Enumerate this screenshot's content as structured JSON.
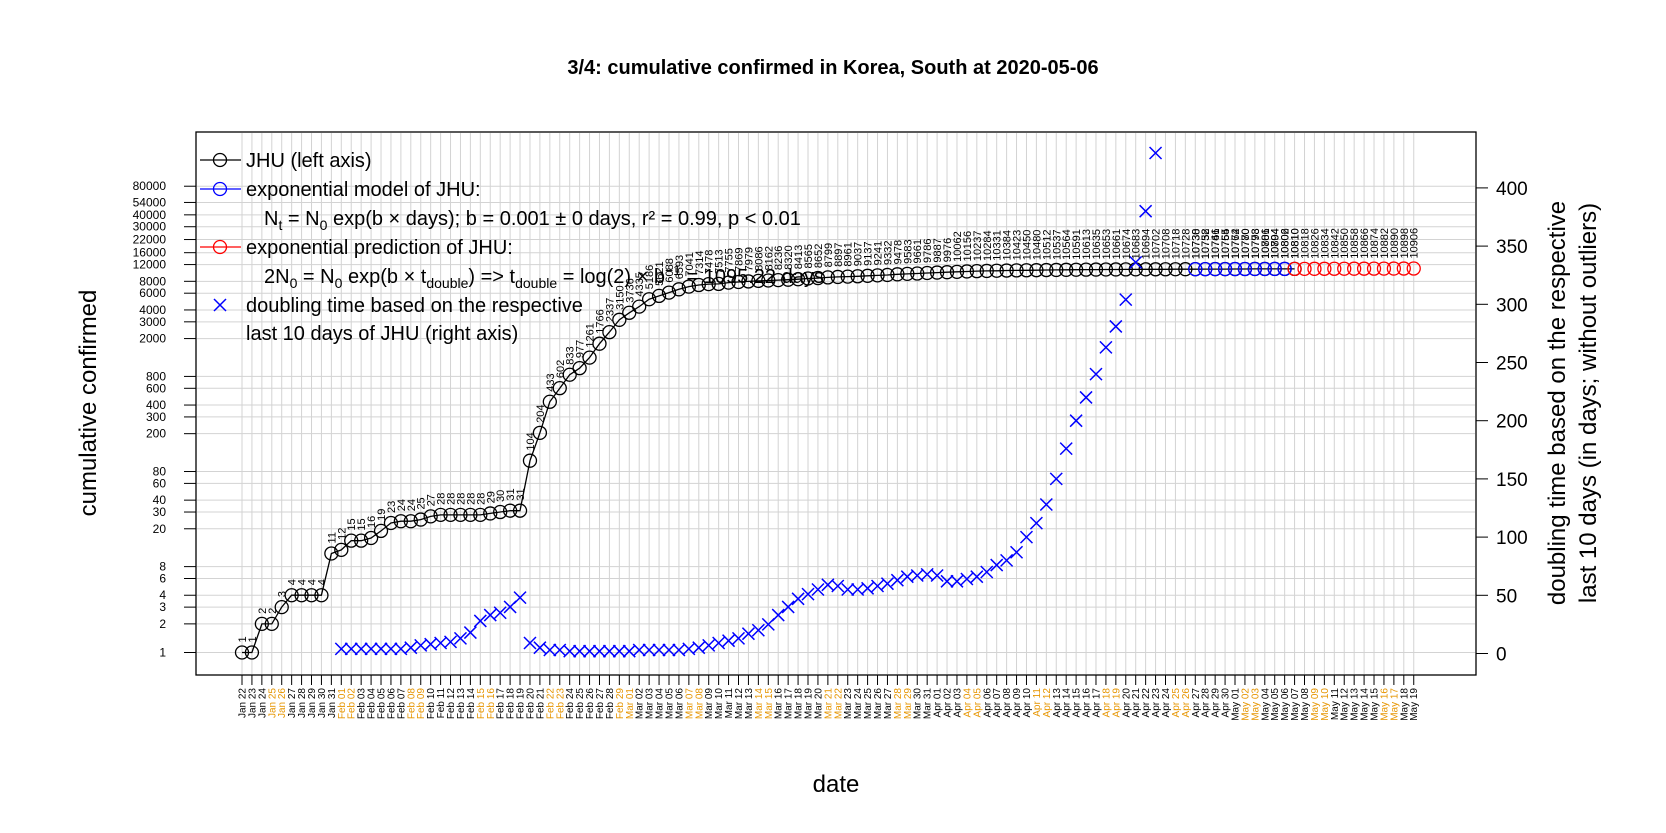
{
  "chart_data": {
    "type": "line",
    "title": "3/4: cumulative confirmed in Korea, South at 2020-05-06",
    "xlabel": "date",
    "ylabel_left": "cumulative confirmed",
    "ylabel_right": [
      "doubling time based on the respective",
      "last 10 days (in days; without outliers)"
    ],
    "y_left_scale": "log",
    "y_left_ticks": [
      1,
      2,
      3,
      4,
      6,
      8,
      20,
      30,
      40,
      60,
      80,
      200,
      300,
      400,
      600,
      800,
      2000,
      3000,
      4000,
      6000,
      8000,
      12000,
      16000,
      22000,
      30000,
      40000,
      54000,
      80000
    ],
    "y_right_ticks": [
      0,
      50,
      100,
      150,
      200,
      250,
      300,
      350,
      400
    ],
    "y_right_range": [
      0,
      430
    ],
    "x_start": "2020-01-22",
    "x_end": "2020-05-19",
    "grid": true,
    "legend_position": "top-left",
    "legend": {
      "jhu": "JHU (left axis)",
      "model": "exponential model of JHU:",
      "model_eq": {
        "a": "N",
        "a_sub": "t",
        "b": " = N",
        "b_sub": "0",
        "c": " exp(b × days); b = 0.001 ± 0 days, r² = 0.99, p < 0.01"
      },
      "pred": "exponential prediction of JHU:",
      "pred_eq": {
        "a": "2N",
        "a_sub": "0",
        "b": " = N",
        "b_sub": "0",
        "c": " exp(b × t",
        "c_sub": "double",
        "d": ") => t",
        "d_sub": "double",
        "e": " = log(2) × b",
        "e_sup": "−1",
        "f": " = 1095.22 days"
      },
      "doubling_line1": "doubling time based on the respective",
      "doubling_line2": "last 10 days of JHU (right axis)"
    },
    "series": [
      {
        "name": "JHU (left axis)",
        "color": "#000000",
        "marker": "circle",
        "start_date": "2020-01-22",
        "values": [
          1,
          1,
          2,
          2,
          3,
          4,
          4,
          4,
          4,
          11,
          12,
          15,
          15,
          16,
          19,
          23,
          24,
          24,
          25,
          27,
          28,
          28,
          28,
          28,
          28,
          29,
          30,
          31,
          31,
          104,
          204,
          433,
          602,
          833,
          977,
          1261,
          1766,
          2337,
          3150,
          3736,
          4335,
          5186,
          5621,
          6088,
          6593,
          7041,
          7314,
          7478,
          7513,
          7755,
          7869,
          7979,
          8086,
          8162,
          8236,
          8320,
          8413,
          8565,
          8652,
          8799,
          8897,
          8961,
          9037,
          9137,
          9241,
          9332,
          9478,
          9583,
          9661,
          9786,
          9887,
          9976,
          10062,
          10156,
          10237,
          10284,
          10331,
          10384,
          10423,
          10450,
          10480,
          10512,
          10537,
          10564,
          10591,
          10613,
          10635,
          10653,
          10661,
          10674,
          10683,
          10694,
          10702,
          10708,
          10718,
          10728,
          10738,
          10752,
          10761,
          10765,
          10774,
          10780,
          10793,
          10801,
          10804,
          10806,
          10810
        ]
      },
      {
        "name": "exponential model of JHU",
        "color": "#0000ff",
        "marker": "circle",
        "start_date": "2020-04-27",
        "values": [
          10730,
          10738,
          10746,
          10754,
          10762,
          10770,
          10778,
          10786,
          10794,
          10802
        ]
      },
      {
        "name": "exponential prediction of JHU",
        "color": "#ff0000",
        "marker": "circle",
        "start_date": "2020-05-07",
        "values": [
          10810,
          10818,
          10826,
          10834,
          10842,
          10850,
          10858,
          10866,
          10874,
          10882,
          10890,
          10898,
          10906
        ]
      },
      {
        "name": "doubling time based on the respective last 10 days of JHU (right axis)",
        "color": "#0000ff",
        "marker": "x",
        "axis": "right",
        "points": [
          [
            "2020-02-01",
            4
          ],
          [
            "2020-02-02",
            4
          ],
          [
            "2020-02-03",
            4
          ],
          [
            "2020-02-04",
            4
          ],
          [
            "2020-02-05",
            4
          ],
          [
            "2020-02-06",
            4
          ],
          [
            "2020-02-07",
            4
          ],
          [
            "2020-02-08",
            5
          ],
          [
            "2020-02-09",
            7
          ],
          [
            "2020-02-10",
            8
          ],
          [
            "2020-02-11",
            9
          ],
          [
            "2020-02-12",
            10
          ],
          [
            "2020-02-13",
            13
          ],
          [
            "2020-02-14",
            18
          ],
          [
            "2020-02-15",
            28
          ],
          [
            "2020-02-16",
            33
          ],
          [
            "2020-02-17",
            35
          ],
          [
            "2020-02-18",
            40
          ],
          [
            "2020-02-19",
            48
          ],
          [
            "2020-02-20",
            9
          ],
          [
            "2020-02-21",
            5
          ],
          [
            "2020-02-22",
            3
          ],
          [
            "2020-02-23",
            3
          ],
          [
            "2020-02-24",
            2
          ],
          [
            "2020-02-25",
            2
          ],
          [
            "2020-02-26",
            2
          ],
          [
            "2020-02-27",
            2
          ],
          [
            "2020-02-28",
            2
          ],
          [
            "2020-02-29",
            2
          ],
          [
            "2020-03-01",
            2
          ],
          [
            "2020-03-02",
            3
          ],
          [
            "2020-03-03",
            3
          ],
          [
            "2020-03-04",
            3
          ],
          [
            "2020-03-05",
            3
          ],
          [
            "2020-03-06",
            3
          ],
          [
            "2020-03-07",
            4
          ],
          [
            "2020-03-08",
            5
          ],
          [
            "2020-03-09",
            7
          ],
          [
            "2020-03-10",
            9
          ],
          [
            "2020-03-11",
            11
          ],
          [
            "2020-03-12",
            13
          ],
          [
            "2020-03-13",
            17
          ],
          [
            "2020-03-14",
            20
          ],
          [
            "2020-03-15",
            25
          ],
          [
            "2020-03-16",
            33
          ],
          [
            "2020-03-17",
            40
          ],
          [
            "2020-03-18",
            47
          ],
          [
            "2020-03-19",
            51
          ],
          [
            "2020-03-20",
            55
          ],
          [
            "2020-03-21",
            59
          ],
          [
            "2020-03-22",
            58
          ],
          [
            "2020-03-23",
            55
          ],
          [
            "2020-03-24",
            55
          ],
          [
            "2020-03-25",
            56
          ],
          [
            "2020-03-26",
            58
          ],
          [
            "2020-03-27",
            60
          ],
          [
            "2020-03-28",
            63
          ],
          [
            "2020-03-29",
            66
          ],
          [
            "2020-03-30",
            67
          ],
          [
            "2020-03-31",
            68
          ],
          [
            "2020-04-01",
            67
          ],
          [
            "2020-04-02",
            62
          ],
          [
            "2020-04-03",
            62
          ],
          [
            "2020-04-04",
            64
          ],
          [
            "2020-04-05",
            66
          ],
          [
            "2020-04-06",
            70
          ],
          [
            "2020-04-07",
            76
          ],
          [
            "2020-04-08",
            80
          ],
          [
            "2020-04-09",
            87
          ],
          [
            "2020-04-10",
            100
          ],
          [
            "2020-04-11",
            112
          ],
          [
            "2020-04-12",
            128
          ],
          [
            "2020-04-13",
            150
          ],
          [
            "2020-04-14",
            176
          ],
          [
            "2020-04-15",
            200
          ],
          [
            "2020-04-16",
            220
          ],
          [
            "2020-04-17",
            240
          ],
          [
            "2020-04-18",
            263
          ],
          [
            "2020-04-19",
            281
          ],
          [
            "2020-04-20",
            304
          ],
          [
            "2020-04-21",
            336
          ],
          [
            "2020-04-22",
            380
          ],
          [
            "2020-04-23",
            430
          ]
        ]
      }
    ]
  }
}
